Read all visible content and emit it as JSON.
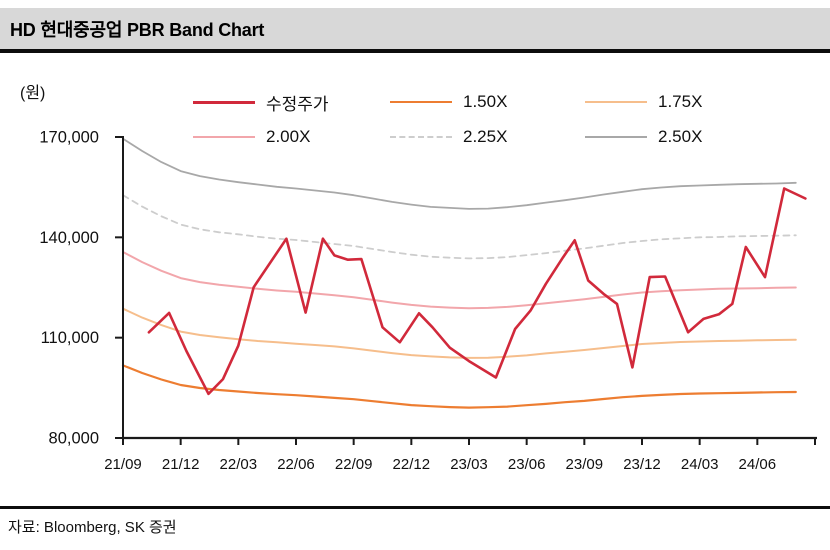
{
  "header": {
    "title": "HD 현대중공업 PBR Band Chart"
  },
  "footer": {
    "source": "자료: Bloomberg, SK 증권"
  },
  "colors": {
    "titlebar_bg": "#d8d8d8",
    "divider": "#0d0d0d",
    "axis": "#1a1a1a",
    "price_red": "#d1293b",
    "band_150x": "#ed7d31",
    "band_175x": "#f6be8c",
    "band_200x": "#f2a6ab",
    "band_225x": "#cdcdcd",
    "band_250x": "#a8a8a8"
  },
  "y_axis": {
    "unit": "(원)",
    "tick_labels": [
      "170,000",
      "140,000",
      "110,000",
      "80,000"
    ],
    "tick_values": [
      170000,
      140000,
      110000,
      80000
    ]
  },
  "x_axis": {
    "labels": [
      "21/09",
      "21/12",
      "22/03",
      "22/06",
      "22/09",
      "22/12",
      "23/03",
      "23/06",
      "23/09",
      "23/12",
      "24/03",
      "24/06"
    ],
    "months_total": 36
  },
  "legend": [
    {
      "label": "수정주가",
      "color": "#d1293b",
      "dash": false,
      "thick": 3
    },
    {
      "label": "1.50X",
      "color": "#ed7d31",
      "dash": false,
      "thick": 2
    },
    {
      "label": "1.75X",
      "color": "#f6be8c",
      "dash": false,
      "thick": 2
    },
    {
      "label": "2.00X",
      "color": "#f2a6ab",
      "dash": false,
      "thick": 2
    },
    {
      "label": "2.25X",
      "color": "#cdcdcd",
      "dash": true,
      "thick": 2
    },
    {
      "label": "2.50X",
      "color": "#a8a8a8",
      "dash": false,
      "thick": 2
    }
  ],
  "chart_data": {
    "type": "line",
    "title": "HD 현대중공업 PBR Band Chart",
    "ylabel": "(원)",
    "ylim": [
      80000,
      170000
    ],
    "x_start": "21/09",
    "x_end": "24/09",
    "x_unit": "months since 21/09",
    "grid": false,
    "legend_position": "top",
    "series": [
      {
        "name": "2.50X",
        "color": "#a8a8a8",
        "width": 1.8,
        "dash": null,
        "values": [
          169500,
          165800,
          162500,
          159800,
          158300,
          157300,
          156500,
          155800,
          155100,
          154600,
          154000,
          153400,
          152600,
          151600,
          150600,
          149800,
          149100,
          148800,
          148500,
          148600,
          149000,
          149600,
          150400,
          151100,
          151900,
          152800,
          153600,
          154400,
          154900,
          155300,
          155500,
          155700,
          155900,
          156000,
          156100,
          156300
        ]
      },
      {
        "name": "2.25X",
        "color": "#cdcdcd",
        "width": 1.8,
        "dash": "6 5",
        "values": [
          152600,
          149200,
          146300,
          143800,
          142400,
          141500,
          140900,
          140200,
          139600,
          139200,
          138600,
          138000,
          137400,
          136500,
          135600,
          134800,
          134200,
          133900,
          133700,
          133800,
          134100,
          134700,
          135300,
          136000,
          136700,
          137500,
          138300,
          138900,
          139400,
          139700,
          140000,
          140100,
          140300,
          140400,
          140500,
          140600
        ]
      },
      {
        "name": "2.00X",
        "color": "#f2a6ab",
        "width": 2,
        "dash": null,
        "values": [
          135600,
          132600,
          130000,
          127800,
          126600,
          125800,
          125200,
          124600,
          124100,
          123700,
          123200,
          122700,
          122100,
          121300,
          120500,
          119800,
          119300,
          119000,
          118800,
          118900,
          119200,
          119700,
          120300,
          120900,
          121500,
          122200,
          122900,
          123500,
          123900,
          124200,
          124400,
          124600,
          124700,
          124800,
          124900,
          125000
        ]
      },
      {
        "name": "1.75X",
        "color": "#f6be8c",
        "width": 2,
        "dash": null,
        "values": [
          118650,
          116000,
          113750,
          111800,
          110800,
          110100,
          109550,
          109000,
          108600,
          108200,
          107800,
          107400,
          106800,
          106100,
          105400,
          104800,
          104400,
          104100,
          103950,
          104000,
          104300,
          104700,
          105300,
          105800,
          106300,
          106900,
          107500,
          108100,
          108400,
          108700,
          108850,
          109000,
          109100,
          109200,
          109300,
          109400
        ]
      },
      {
        "name": "1.50X",
        "color": "#ed7d31",
        "width": 2.2,
        "dash": null,
        "values": [
          101700,
          99450,
          97500,
          95850,
          94950,
          94350,
          93900,
          93450,
          93100,
          92800,
          92400,
          92000,
          91600,
          91000,
          90400,
          89850,
          89500,
          89250,
          89100,
          89200,
          89400,
          89800,
          90200,
          90700,
          91100,
          91650,
          92200,
          92600,
          92900,
          93150,
          93300,
          93400,
          93500,
          93600,
          93700,
          93750
        ]
      },
      {
        "name": "수정주가",
        "color": "#d1293b",
        "width": 2.6,
        "dash": null,
        "t": [
          1.35,
          2.4,
          3.3,
          4.45,
          5.2,
          6.0,
          6.8,
          8.5,
          9.5,
          10.4,
          11.0,
          11.7,
          12.4,
          13.5,
          14.4,
          15.4,
          16.1,
          17.0,
          18.0,
          19.4,
          20.4,
          21.2,
          22.0,
          22.9,
          23.5,
          24.2,
          25.0,
          25.7,
          26.5,
          27.4,
          28.2,
          29.4,
          30.2,
          31.0,
          31.7,
          32.4,
          33.4,
          34.4,
          35.5
        ],
        "values": [
          111600,
          117400,
          106000,
          93200,
          97600,
          107600,
          125100,
          139600,
          117500,
          139600,
          134600,
          133300,
          133500,
          113100,
          108600,
          117300,
          113100,
          107000,
          103000,
          98100,
          112600,
          118100,
          126100,
          134100,
          139100,
          127100,
          123100,
          120100,
          101100,
          128100,
          128300,
          111600,
          115600,
          117000,
          120100,
          137100,
          128100,
          154600,
          151600
        ]
      }
    ]
  }
}
